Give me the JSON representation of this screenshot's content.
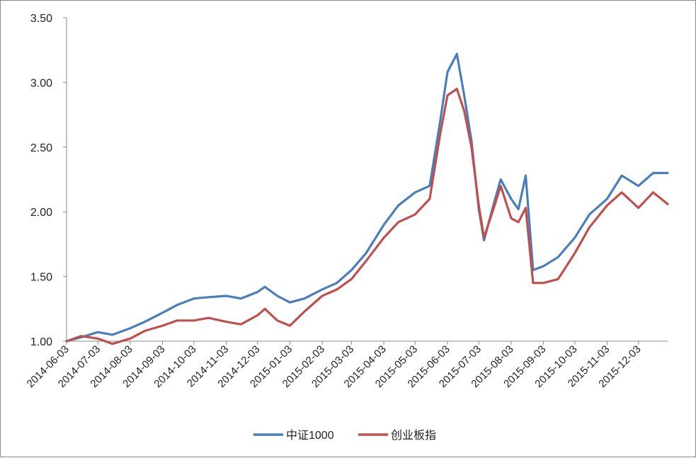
{
  "chart_data": {
    "type": "line",
    "title": "",
    "xlabel": "",
    "ylabel": "",
    "ylim": [
      1.0,
      3.5
    ],
    "yticks": [
      "1.00",
      "1.50",
      "2.00",
      "2.50",
      "3.00",
      "3.50"
    ],
    "x_tick_labels": [
      "2014-06-03",
      "2014-07-03",
      "2014-08-03",
      "2014-09-03",
      "2014-10-03",
      "2014-11-03",
      "2014-12-03",
      "2015-01-03",
      "2015-02-03",
      "2015-03-03",
      "2015-04-03",
      "2015-05-03",
      "2015-06-03",
      "2015-07-03",
      "2015-08-03",
      "2015-09-03",
      "2015-10-03",
      "2015-11-03",
      "2015-12-03"
    ],
    "x_range": [
      "2014-06-03",
      "2015-12-31"
    ],
    "grid": false,
    "legend_position": "bottom",
    "x": [
      "2014-06-03",
      "2014-06-17",
      "2014-07-03",
      "2014-07-17",
      "2014-08-03",
      "2014-08-17",
      "2014-09-03",
      "2014-09-17",
      "2014-10-03",
      "2014-10-17",
      "2014-11-03",
      "2014-11-17",
      "2014-12-03",
      "2014-12-10",
      "2014-12-22",
      "2015-01-03",
      "2015-01-17",
      "2015-02-03",
      "2015-02-17",
      "2015-03-03",
      "2015-03-17",
      "2015-04-03",
      "2015-04-17",
      "2015-05-03",
      "2015-05-17",
      "2015-05-27",
      "2015-06-03",
      "2015-06-12",
      "2015-06-19",
      "2015-06-26",
      "2015-07-03",
      "2015-07-08",
      "2015-07-17",
      "2015-07-24",
      "2015-08-03",
      "2015-08-10",
      "2015-08-17",
      "2015-08-24",
      "2015-09-03",
      "2015-09-17",
      "2015-10-03",
      "2015-10-17",
      "2015-11-03",
      "2015-11-17",
      "2015-12-03",
      "2015-12-17",
      "2015-12-31"
    ],
    "series": [
      {
        "name": "中证1000",
        "color": "#4a7ebb",
        "values": [
          1.0,
          1.03,
          1.07,
          1.05,
          1.1,
          1.15,
          1.22,
          1.28,
          1.33,
          1.34,
          1.35,
          1.33,
          1.38,
          1.42,
          1.35,
          1.3,
          1.33,
          1.4,
          1.45,
          1.55,
          1.68,
          1.9,
          2.05,
          2.15,
          2.2,
          2.7,
          3.08,
          3.22,
          2.9,
          2.55,
          2.02,
          1.78,
          2.05,
          2.25,
          2.1,
          2.02,
          2.28,
          1.55,
          1.58,
          1.65,
          1.8,
          1.98,
          2.1,
          2.28,
          2.2,
          2.3,
          2.3
        ]
      },
      {
        "name": "创业板指",
        "color": "#c0504d",
        "values": [
          1.0,
          1.04,
          1.02,
          0.98,
          1.02,
          1.08,
          1.12,
          1.16,
          1.16,
          1.18,
          1.15,
          1.13,
          1.2,
          1.25,
          1.16,
          1.12,
          1.23,
          1.35,
          1.4,
          1.48,
          1.62,
          1.8,
          1.92,
          1.98,
          2.1,
          2.6,
          2.9,
          2.95,
          2.78,
          2.5,
          2.05,
          1.8,
          2.02,
          2.2,
          1.95,
          1.92,
          2.03,
          1.45,
          1.45,
          1.48,
          1.68,
          1.88,
          2.05,
          2.15,
          2.03,
          2.15,
          2.06
        ]
      }
    ]
  }
}
